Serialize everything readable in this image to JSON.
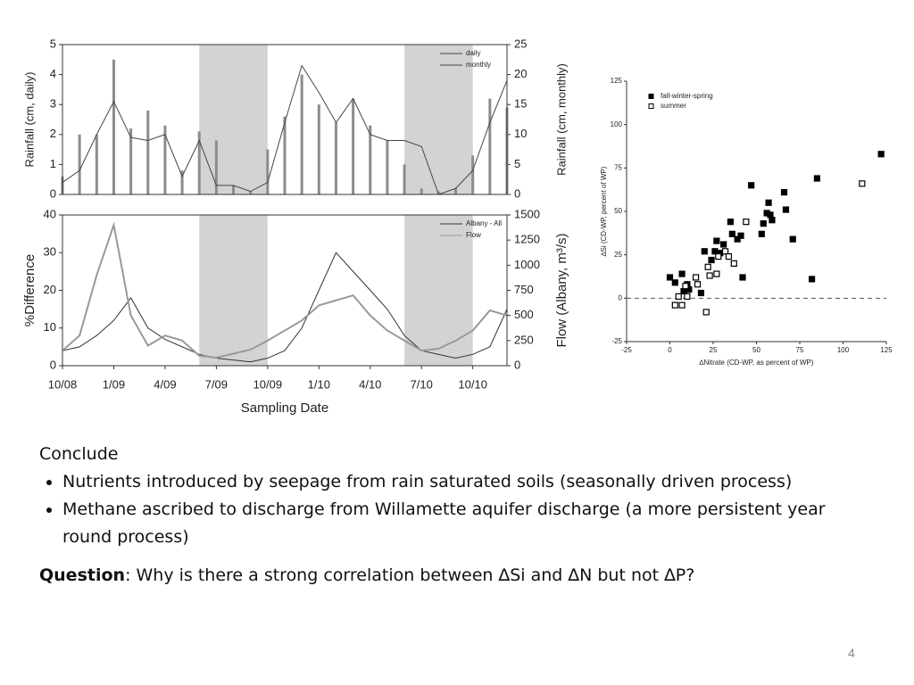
{
  "chart_data": [
    {
      "type": "line",
      "xlim": [
        "2008-10",
        "2010-12"
      ],
      "ylim": [
        0,
        5
      ],
      "yticks": [
        0,
        1,
        2,
        3,
        4,
        5
      ],
      "y2lim": [
        0,
        25
      ],
      "y2ticks": [
        0,
        5,
        10,
        15,
        20,
        25
      ],
      "ylabel": "Rainfall (cm, daily)",
      "y2label": "Rainfall (cm, monthly)",
      "shaded": [
        [
          "2009-06",
          "2009-10"
        ],
        [
          "2010-06",
          "2010-10"
        ]
      ],
      "x": [
        "2008-10",
        "2008-11",
        "2008-12",
        "2009-01",
        "2009-02",
        "2009-03",
        "2009-04",
        "2009-05",
        "2009-06",
        "2009-07",
        "2009-08",
        "2009-09",
        "2009-10",
        "2009-11",
        "2009-12",
        "2010-01",
        "2010-02",
        "2010-03",
        "2010-04",
        "2010-05",
        "2010-06",
        "2010-07",
        "2010-08",
        "2010-09",
        "2010-10",
        "2010-11",
        "2010-12"
      ],
      "series": [
        {
          "name": "daily",
          "type": "bar",
          "color": "#8c8c8c",
          "values": [
            0.6,
            2,
            2,
            4.5,
            2.2,
            2.8,
            2.3,
            0.8,
            2.1,
            1.8,
            0.3,
            0.1,
            1.5,
            2.6,
            4,
            3,
            2.4,
            3.2,
            2.3,
            1.8,
            1,
            0.2,
            0.1,
            0.2,
            1.3,
            3.2,
            2.9
          ]
        },
        {
          "name": "monthly",
          "type": "line",
          "axis": "y2",
          "color": "#444",
          "values": [
            2,
            4,
            10,
            15.5,
            9.5,
            9,
            10,
            3,
            9,
            1.5,
            1.5,
            0.5,
            2,
            12,
            21.5,
            17,
            12,
            16,
            10,
            9,
            9,
            8,
            0,
            1,
            4,
            12,
            19
          ]
        }
      ]
    },
    {
      "type": "line",
      "xlim": [
        "2008-10",
        "2010-12"
      ],
      "ylim": [
        0,
        40
      ],
      "yticks": [
        0,
        10,
        20,
        30,
        40
      ],
      "y2lim": [
        0,
        1500
      ],
      "y2ticks": [
        0,
        250,
        500,
        750,
        1000,
        1250,
        1500
      ],
      "ylabel": "%Difference",
      "y2label": "Flow (Albany, m³/s)",
      "xlabel": "Sampling Date",
      "shaded": [
        [
          "2009-06",
          "2009-10"
        ],
        [
          "2010-06",
          "2010-10"
        ]
      ],
      "xticks": [
        {
          "value": "2008-10",
          "label": "10/08"
        },
        {
          "value": "2009-01",
          "label": "1/09"
        },
        {
          "value": "2009-04",
          "label": "4/09"
        },
        {
          "value": "2009-07",
          "label": "7/09"
        },
        {
          "value": "2009-10",
          "label": "10/09"
        },
        {
          "value": "2010-01",
          "label": "1/10"
        },
        {
          "value": "2010-04",
          "label": "4/10"
        },
        {
          "value": "2010-07",
          "label": "7/10"
        },
        {
          "value": "2010-10",
          "label": "10/10"
        }
      ],
      "x": [
        "2008-10",
        "2008-11",
        "2008-12",
        "2009-01",
        "2009-02",
        "2009-03",
        "2009-04",
        "2009-05",
        "2009-06",
        "2009-07",
        "2009-08",
        "2009-09",
        "2009-10",
        "2009-11",
        "2009-12",
        "2010-01",
        "2010-02",
        "2010-03",
        "2010-04",
        "2010-05",
        "2010-06",
        "2010-07",
        "2010-08",
        "2010-09",
        "2010-10",
        "2010-11",
        "2010-12"
      ],
      "series": [
        {
          "name": "Albany - All",
          "type": "line",
          "color": "#333",
          "values": [
            4,
            5,
            8,
            12,
            18,
            10,
            7,
            5,
            3,
            2,
            1.5,
            1,
            2,
            4,
            10,
            20,
            30,
            25,
            20,
            15,
            8,
            4,
            3,
            2,
            3,
            5,
            15
          ]
        },
        {
          "name": "Flow",
          "type": "line",
          "axis": "y2",
          "color": "#999",
          "values": [
            150,
            300,
            900,
            1400,
            500,
            200,
            300,
            250,
            100,
            80,
            120,
            160,
            250,
            350,
            450,
            600,
            650,
            700,
            500,
            350,
            250,
            150,
            170,
            250,
            350,
            550,
            500
          ]
        }
      ]
    },
    {
      "type": "scatter",
      "xlim": [
        -25,
        125
      ],
      "ylim": [
        -25,
        125
      ],
      "xticks": [
        -25,
        0,
        25,
        50,
        75,
        100,
        125
      ],
      "yticks": [
        -25,
        0,
        25,
        50,
        75,
        100,
        125
      ],
      "xlabel": "∆Nitrate (CD-WP, as percent of WP)",
      "ylabel": "∆Si (CD-WP, percent of WP)",
      "series": [
        {
          "name": "fall-winter-spring",
          "color": "#000",
          "filled": true,
          "x": [
            0,
            3,
            7,
            10,
            8,
            11,
            18,
            20,
            24,
            26,
            27,
            29,
            31,
            35,
            36,
            39,
            41,
            42,
            47,
            53,
            54,
            56,
            57,
            58,
            59,
            66,
            67,
            71,
            82,
            85,
            122
          ],
          "values": [
            12,
            9,
            14,
            8,
            4,
            5,
            3,
            27,
            22,
            27,
            33,
            26,
            31,
            44,
            37,
            34,
            36,
            12,
            65,
            37,
            43,
            49,
            55,
            48,
            45,
            61,
            51,
            34,
            11,
            69,
            83
          ]
        },
        {
          "name": "summer",
          "color": "#000",
          "filled": false,
          "x": [
            3,
            7,
            10,
            5,
            9,
            15,
            16,
            21,
            22,
            23,
            27,
            28,
            32,
            34,
            37,
            44,
            111
          ],
          "values": [
            -4,
            -4,
            1,
            1,
            7,
            12,
            8,
            -8,
            18,
            13,
            14,
            24,
            27,
            24,
            20,
            44,
            66
          ]
        }
      ]
    }
  ],
  "slide": {
    "heading": "Conclude",
    "bullets": [
      "Nutrients introduced by seepage from rain saturated soils (seasonally driven process)",
      "Methane ascribed to discharge from Willamette aquifer discharge (a more persistent year round process)"
    ],
    "question_label": "Question",
    "question": ": Why is there a strong correlation between ∆Si and ∆N but not ∆P?",
    "page": "4"
  }
}
